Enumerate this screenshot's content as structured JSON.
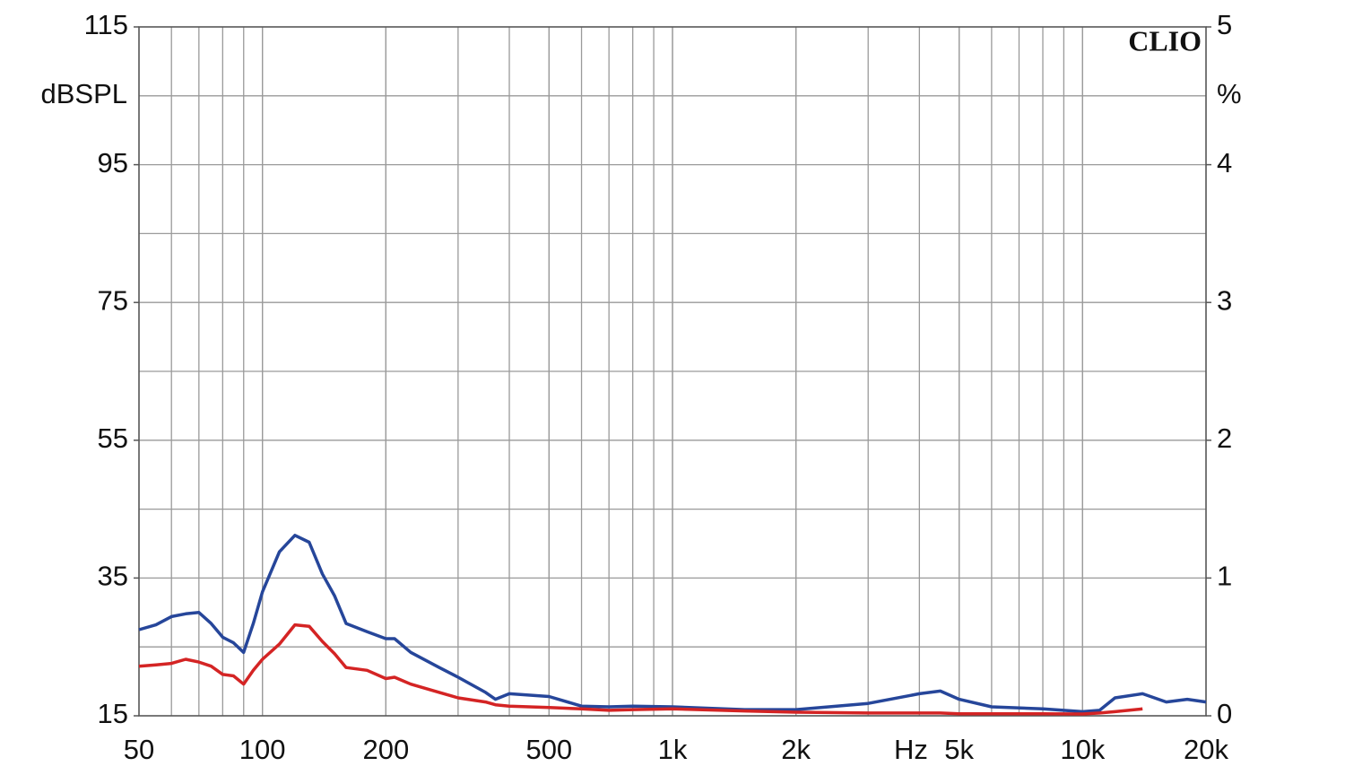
{
  "chart_data": {
    "type": "line",
    "x_label": "Hz",
    "y_label": "dBSPL",
    "y2_label": "%",
    "watermark": "CLIO",
    "log_x": true,
    "grid": true,
    "xlim": [
      50,
      20000
    ],
    "xticks": [
      50,
      100,
      200,
      500,
      {
        "value": 1000,
        "label": "1k"
      },
      {
        "value": 2000,
        "label": "2k"
      },
      {
        "value": 5000,
        "label": "5k"
      },
      {
        "value": 10000,
        "label": "10k"
      },
      {
        "value": 20000,
        "label": "20k"
      }
    ],
    "ylim": [
      15,
      115
    ],
    "yticks": [
      15,
      35,
      55,
      75,
      95,
      115
    ],
    "y2lim": [
      0,
      5
    ],
    "y2ticks": [
      0,
      1,
      2,
      3,
      4,
      5
    ],
    "x": [
      50,
      55,
      60,
      65,
      70,
      75,
      80,
      85,
      90,
      95,
      100,
      110,
      120,
      130,
      140,
      150,
      160,
      180,
      200,
      210,
      230,
      270,
      300,
      350,
      370,
      400,
      500,
      600,
      700,
      800,
      1000,
      1500,
      2000,
      3000,
      4000,
      4500,
      5000,
      6000,
      8000,
      10000,
      11000,
      12000,
      14000,
      16000,
      18000,
      20000
    ],
    "series": [
      {
        "color": "#26469a",
        "axis": "y2",
        "values": [
          0.625,
          0.66,
          0.72,
          0.74,
          0.75,
          0.67,
          0.57,
          0.53,
          0.46,
          0.67,
          0.9,
          1.19,
          1.31,
          1.26,
          1.03,
          0.87,
          0.67,
          0.61,
          0.56,
          0.56,
          0.46,
          0.35,
          0.28,
          0.17,
          0.12,
          0.16,
          0.14,
          0.07,
          0.065,
          0.07,
          0.065,
          0.045,
          0.045,
          0.09,
          0.16,
          0.18,
          0.12,
          0.065,
          0.05,
          0.03,
          0.04,
          0.13,
          0.16,
          0.1,
          0.12,
          0.1
        ]
      },
      {
        "color": "#d42424",
        "axis": "y2",
        "values": [
          0.36,
          0.37,
          0.38,
          0.41,
          0.39,
          0.36,
          0.3,
          0.29,
          0.23,
          0.33,
          0.41,
          0.52,
          0.66,
          0.65,
          0.54,
          0.45,
          0.35,
          0.33,
          0.27,
          0.28,
          0.23,
          0.17,
          0.13,
          0.1,
          0.08,
          0.07,
          0.06,
          0.05,
          0.04,
          0.045,
          0.05,
          0.035,
          0.026,
          0.02,
          0.02,
          0.02,
          0.015,
          0.015,
          0.015,
          0.013,
          0.02,
          0.03,
          0.05,
          null,
          null,
          null
        ]
      }
    ]
  }
}
